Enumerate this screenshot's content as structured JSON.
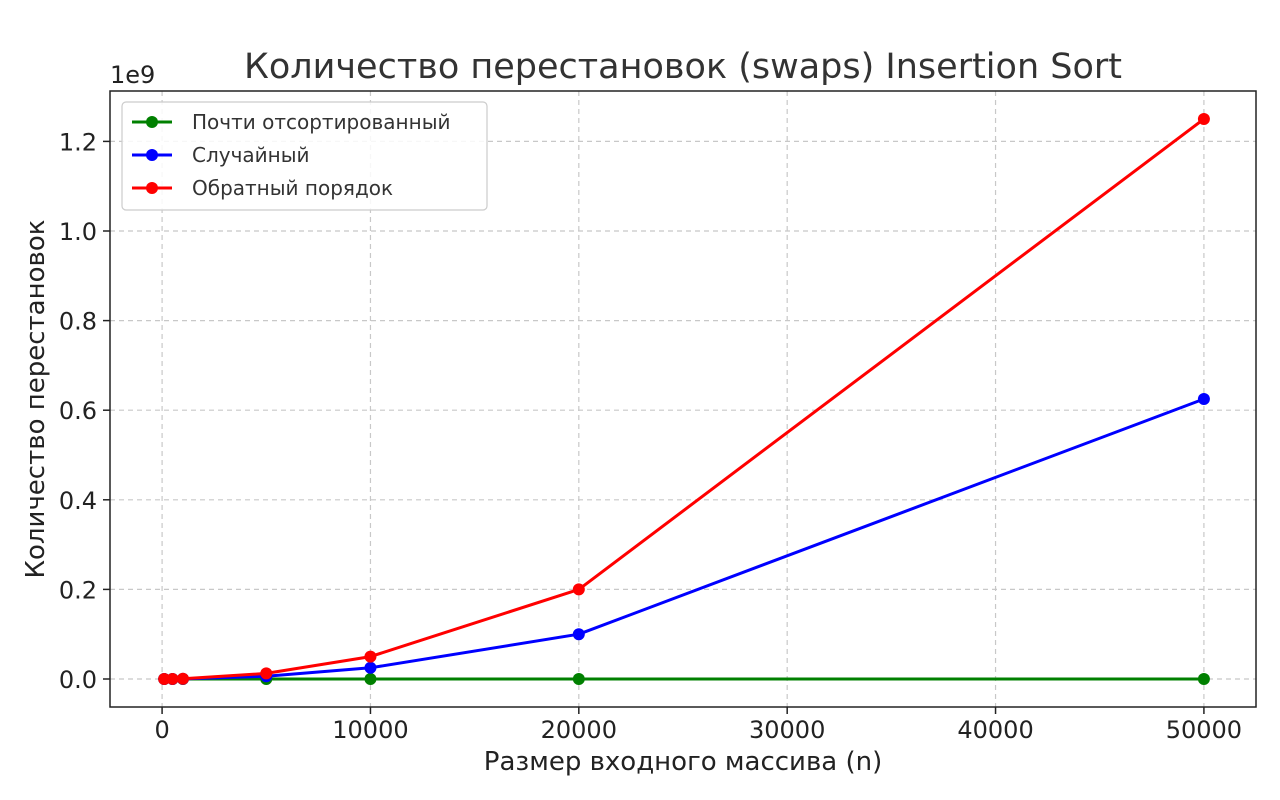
{
  "chart_data": {
    "type": "line",
    "title": "Количество перестановок (swaps) Insertion Sort",
    "xlabel": "Размер входного массива (n)",
    "ylabel": "Количество перестановок",
    "y_multiplier": "1e9",
    "xlim": [
      -2500,
      52500
    ],
    "ylim": [
      -0.0625,
      1.3125
    ],
    "x_ticks": [
      0,
      10000,
      20000,
      30000,
      40000,
      50000
    ],
    "x_tick_labels": [
      "0",
      "10000",
      "20000",
      "30000",
      "40000",
      "50000"
    ],
    "y_ticks": [
      0.0,
      0.2,
      0.4,
      0.6,
      0.8,
      1.0,
      1.2
    ],
    "y_tick_labels": [
      "0.0",
      "0.2",
      "0.4",
      "0.6",
      "0.8",
      "1.0",
      "1.2"
    ],
    "grid": true,
    "legend_position": "top-left",
    "x": [
      100,
      500,
      1000,
      5000,
      10000,
      20000,
      50000
    ],
    "series": [
      {
        "name": "Почти отсортированный",
        "color": "#008000",
        "values": [
          0,
          0,
          0,
          0.0,
          0.0,
          0.0,
          0.0
        ]
      },
      {
        "name": "Случайный",
        "color": "#0000ff",
        "values": [
          2.5e-06,
          6.25e-05,
          0.00025,
          0.00625,
          0.025,
          0.1,
          0.625
        ]
      },
      {
        "name": "Обратный порядок",
        "color": "#ff0000",
        "values": [
          5e-06,
          0.000125,
          0.0005,
          0.0125,
          0.05,
          0.2,
          1.25
        ]
      }
    ]
  }
}
